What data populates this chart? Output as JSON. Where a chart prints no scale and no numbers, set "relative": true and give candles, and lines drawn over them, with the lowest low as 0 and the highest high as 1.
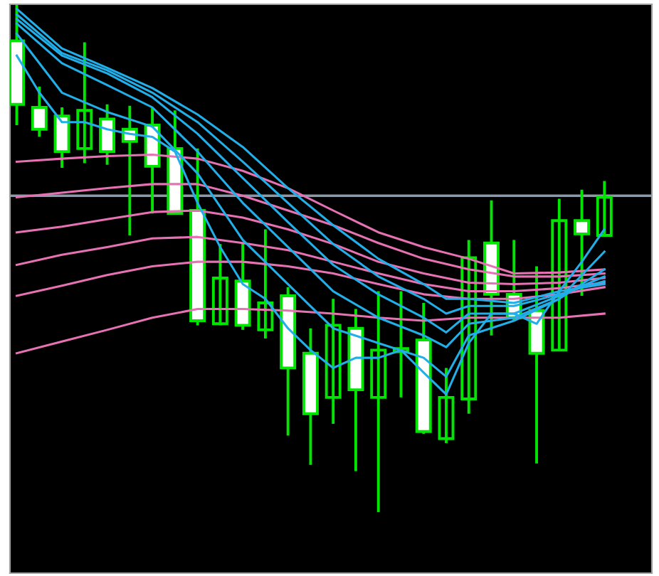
{
  "chart_data": {
    "type": "candlestick",
    "relative": true,
    "categories": [
      null,
      null,
      null,
      null,
      null,
      null,
      null,
      null,
      null,
      null,
      null,
      null,
      null,
      null,
      null,
      null,
      null,
      null,
      null,
      null,
      null,
      null,
      null,
      null,
      null,
      null,
      null
    ],
    "ref_lines": [
      {
        "axis": "y",
        "value": 0.623,
        "color": "#8c9aa8"
      }
    ],
    "series": [
      {
        "type": "line",
        "color": "#e672b4",
        "values": [
          0.69,
          null,
          0.696,
          null,
          0.701,
          null,
          0.704,
          null,
          0.696,
          null,
          0.672,
          null,
          0.638,
          null,
          0.594,
          null,
          0.551,
          null,
          0.522,
          null,
          0.499,
          null,
          0.47,
          null,
          0.472,
          null,
          0.478
        ]
      },
      {
        "type": "line",
        "color": "#e672b4",
        "values": [
          0.62,
          null,
          0.629,
          null,
          0.638,
          null,
          0.646,
          null,
          0.646,
          null,
          0.623,
          null,
          0.594,
          null,
          0.565,
          null,
          0.53,
          null,
          0.499,
          null,
          0.478,
          null,
          0.464,
          null,
          0.464,
          null,
          0.47
        ]
      },
      {
        "type": "line",
        "color": "#e672b4",
        "values": [
          0.551,
          null,
          0.562,
          null,
          0.577,
          null,
          0.591,
          null,
          0.594,
          null,
          0.58,
          null,
          0.557,
          null,
          0.528,
          null,
          0.493,
          null,
          0.47,
          null,
          0.452,
          null,
          0.449,
          null,
          0.452,
          null,
          0.461
        ]
      },
      {
        "type": "line",
        "color": "#e672b4",
        "values": [
          0.487,
          null,
          0.507,
          null,
          0.522,
          null,
          0.539,
          null,
          0.542,
          null,
          0.53,
          null,
          0.516,
          null,
          0.493,
          null,
          0.47,
          null,
          0.449,
          null,
          0.435,
          null,
          0.435,
          null,
          0.441,
          null,
          0.452
        ]
      },
      {
        "type": "line",
        "color": "#e672b4",
        "values": [
          0.426,
          null,
          0.446,
          null,
          0.467,
          null,
          0.484,
          null,
          0.493,
          null,
          0.493,
          null,
          0.484,
          null,
          0.47,
          null,
          0.449,
          null,
          0.429,
          null,
          0.42,
          null,
          0.42,
          null,
          0.429,
          null,
          0.443
        ]
      },
      {
        "type": "line",
        "color": "#e672b4",
        "values": [
          0.313,
          null,
          0.336,
          null,
          0.359,
          null,
          0.383,
          null,
          0.4,
          null,
          0.4,
          null,
          0.397,
          null,
          0.391,
          null,
          0.383,
          null,
          0.377,
          null,
          0.383,
          null,
          0.383,
          null,
          0.383,
          null,
          0.391
        ]
      },
      {
        "type": "line",
        "color": "#22aee8",
        "values": [
          0.899,
          0.826,
          0.768,
          0.768,
          0.754,
          0.745,
          0.739,
          0.71,
          0.609,
          0.522,
          0.449,
          0.42,
          0.362,
          0.319,
          0.284,
          0.304,
          0.304,
          0.319,
          0.275,
          0.232,
          0.333,
          0.391,
          0.391,
          0.371,
          0.435,
          0.493,
          0.557
        ]
      },
      {
        "type": "line",
        "color": "#22aee8",
        "values": [
          0.942,
          null,
          0.826,
          null,
          0.788,
          null,
          0.759,
          null,
          0.667,
          null,
          0.536,
          null,
          0.449,
          null,
          0.362,
          null,
          0.333,
          null,
          0.304,
          0.267,
          0.348,
          null,
          0.377,
          null,
          0.42,
          null,
          0.513
        ]
      },
      {
        "type": "line",
        "color": "#22aee8",
        "values": [
          0.962,
          null,
          0.884,
          null,
          0.841,
          null,
          0.797,
          null,
          0.71,
          null,
          0.609,
          null,
          0.522,
          null,
          0.435,
          null,
          0.383,
          null,
          0.348,
          0.325,
          0.371,
          null,
          0.383,
          null,
          0.42,
          null,
          0.478
        ]
      },
      {
        "type": "line",
        "color": "#22aee8",
        "values": [
          0.971,
          null,
          0.899,
          null,
          0.864,
          null,
          0.817,
          null,
          0.745,
          null,
          0.658,
          null,
          0.571,
          null,
          0.487,
          null,
          0.429,
          null,
          0.383,
          0.354,
          0.391,
          null,
          0.391,
          null,
          0.426,
          null,
          0.464
        ]
      },
      {
        "type": "line",
        "color": "#22aee8",
        "values": [
          0.98,
          null,
          0.904,
          null,
          0.87,
          null,
          0.826,
          null,
          0.768,
          null,
          0.69,
          null,
          0.609,
          null,
          0.528,
          null,
          0.464,
          null,
          0.42,
          0.391,
          0.406,
          null,
          0.406,
          null,
          0.429,
          null,
          0.455
        ]
      },
      {
        "type": "line",
        "color": "#22aee8",
        "values": [
          0.991,
          null,
          0.913,
          null,
          0.875,
          null,
          0.835,
          null,
          0.783,
          null,
          0.719,
          null,
          0.638,
          null,
          0.565,
          null,
          0.499,
          null,
          0.449,
          0.42,
          0.42,
          null,
          0.412,
          null,
          0.435,
          null,
          0.449
        ]
      },
      {
        "color": "#00e600",
        "ohlc": [
          [
            0.928,
            1.0,
            0.762,
            0.803
          ],
          [
            0.797,
            0.838,
            0.739,
            0.754
          ],
          [
            0.78,
            0.797,
            0.678,
            0.71
          ],
          [
            0.716,
            0.925,
            0.687,
            0.791
          ],
          [
            0.774,
            0.803,
            0.684,
            0.71
          ],
          [
            0.754,
            0.8,
            0.545,
            0.73
          ],
          [
            0.762,
            0.797,
            0.588,
            0.681
          ],
          [
            0.716,
            0.791,
            0.586,
            0.588
          ],
          [
            0.594,
            0.716,
            0.368,
            0.377
          ],
          [
            0.371,
            0.528,
            0.368,
            0.461
          ],
          [
            0.455,
            0.53,
            0.359,
            0.368
          ],
          [
            0.359,
            0.557,
            0.342,
            0.412
          ],
          [
            0.426,
            0.443,
            0.151,
            0.284
          ],
          [
            0.313,
            0.362,
            0.093,
            0.194
          ],
          [
            0.226,
            0.42,
            0.174,
            0.368
          ],
          [
            0.362,
            0.4,
            0.081,
            0.241
          ],
          [
            0.226,
            0.435,
            0.0,
            0.319
          ],
          [
            0.316,
            0.435,
            0.226,
            0.322
          ],
          [
            0.339,
            0.412,
            0.154,
            0.159
          ],
          [
            0.145,
            0.284,
            0.136,
            0.226
          ],
          [
            0.223,
            0.536,
            0.194,
            0.501
          ],
          [
            0.53,
            0.614,
            0.348,
            0.429
          ],
          [
            0.429,
            0.536,
            0.377,
            0.383
          ],
          [
            0.397,
            0.484,
            0.096,
            0.313
          ],
          [
            0.319,
            0.617,
            0.319,
            0.574
          ],
          [
            0.574,
            0.635,
            0.426,
            0.548
          ],
          [
            0.545,
            0.652,
            0.545,
            0.62
          ]
        ]
      }
    ]
  }
}
